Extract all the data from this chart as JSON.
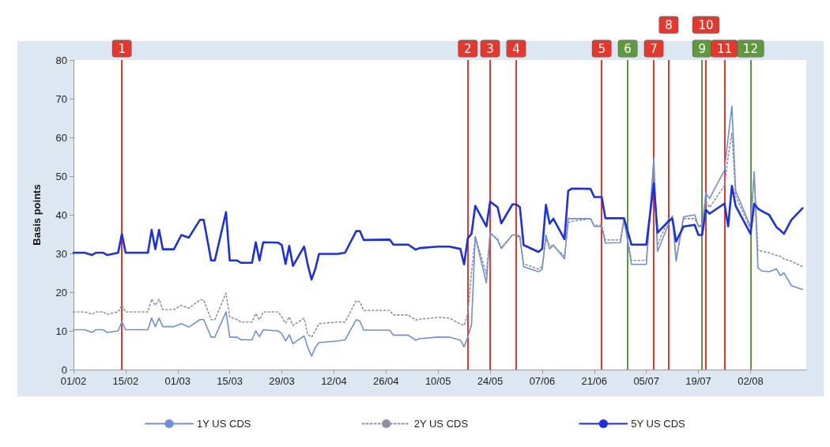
{
  "chart_data": {
    "type": "line",
    "ylabel": "Basis points",
    "x": [
      "--02-01",
      "--02-04",
      "--02-06",
      "--02-07",
      "--02-09",
      "--02-10",
      "--02-13",
      "--02-14",
      "--02-15",
      "--02-21",
      "--02-22",
      "--02-23",
      "--02-24",
      "--02-25",
      "--02-28",
      "--03-02",
      "--03-04",
      "--03-07",
      "--03-08",
      "--03-10",
      "--03-11",
      "--03-14",
      "--03-15",
      "--03-17",
      "--03-18",
      "--03-21",
      "--03-22",
      "--03-23",
      "--03-24",
      "--03-28",
      "--03-29",
      "--03-30",
      "--03-31",
      "--04-01",
      "--04-04",
      "--04-05",
      "--04-06",
      "--04-07",
      "--04-08",
      "--04-13",
      "--04-15",
      "--04-18",
      "--04-19",
      "--04-20",
      "--04-27",
      "--04-28",
      "--05-02",
      "--05-04",
      "--05-05",
      "--05-10",
      "--05-13",
      "--05-16",
      "--05-17",
      "--05-18",
      "--05-19",
      "--05-20",
      "--05-23",
      "--05-24",
      "--05-26",
      "--05-27",
      "--05-30",
      "--05-31",
      "--06-01",
      "--06-02",
      "--06-06",
      "--06-07",
      "--06-08",
      "--06-09",
      "--06-10",
      "--06-13",
      "--06-14",
      "--06-15",
      "--06-20",
      "--06-21",
      "--06-23",
      "--06-24",
      "--06-28",
      "--06-29",
      "--07-01",
      "--07-05",
      "--07-07",
      "--07-08",
      "--07-11",
      "--07-12",
      "--07-13",
      "--07-15",
      "--07-18",
      "--07-19",
      "--07-20",
      "--07-21",
      "--07-22",
      "--07-26",
      "--07-27",
      "--07-28",
      "--07-29",
      "--08-02",
      "--08-03",
      "--08-04",
      "--08-05",
      "--08-07",
      "--08-09",
      "--08-10",
      "--08-11",
      "--08-13",
      "--08-16"
    ],
    "series": [
      {
        "name": "1Y US CDS",
        "color": "#6f8fd8",
        "line_style": "solid",
        "values": [
          10.3,
          10.3,
          9.6,
          10.3,
          10.3,
          9.6,
          10.0,
          12.4,
          10.3,
          10.3,
          13.3,
          11.1,
          13.3,
          11.1,
          11.1,
          11.9,
          11.0,
          12.9,
          12.9,
          8.4,
          8.4,
          14.9,
          8.4,
          8.4,
          7.7,
          7.7,
          10.0,
          8.5,
          10.3,
          10.0,
          9.3,
          7.4,
          9.0,
          6.7,
          8.7,
          5.7,
          3.5,
          5.7,
          7.0,
          7.4,
          7.7,
          12.9,
          12.5,
          10.2,
          10.2,
          8.9,
          8.9,
          7.6,
          8.0,
          8.4,
          8.4,
          7.6,
          5.9,
          8.4,
          11.6,
          34.4,
          22.4,
          35.4,
          33.5,
          31.3,
          34.8,
          34.8,
          34.5,
          26.6,
          25.3,
          25.9,
          34.8,
          31.2,
          32.2,
          28.6,
          39.0,
          39.0,
          39.0,
          37.0,
          37.0,
          32.7,
          32.8,
          38.7,
          27.2,
          27.2,
          54.7,
          30.5,
          37.7,
          39.7,
          28.0,
          39.5,
          40.0,
          37.0,
          37.0,
          45.6,
          44.2,
          51.5,
          60.0,
          68.1,
          46.2,
          37.0,
          51.1,
          26.3,
          25.5,
          25.3,
          26.0,
          24.3,
          25.0,
          21.7,
          20.7
        ]
      },
      {
        "name": "2Y US CDS",
        "color": "#8c90a4",
        "line_style": "dotted",
        "values": [
          14.9,
          14.9,
          14.3,
          14.9,
          14.9,
          14.3,
          14.9,
          16.7,
          14.9,
          14.9,
          18.2,
          16.6,
          18.2,
          15.5,
          15.5,
          16.6,
          15.9,
          18.0,
          18.0,
          12.9,
          12.9,
          19.8,
          13.6,
          12.9,
          12.3,
          12.3,
          14.5,
          12.9,
          14.9,
          14.9,
          13.6,
          12.0,
          13.6,
          11.4,
          13.3,
          9.0,
          8.4,
          10.0,
          11.9,
          12.3,
          12.3,
          17.8,
          17.5,
          15.3,
          15.3,
          14.1,
          14.1,
          12.8,
          13.0,
          13.5,
          13.3,
          11.8,
          11.4,
          14.5,
          25.0,
          34.4,
          24.7,
          35.1,
          33.8,
          31.5,
          34.8,
          34.8,
          34.0,
          27.3,
          26.0,
          26.6,
          33.8,
          32.0,
          31.9,
          29.3,
          38.0,
          38.3,
          39.0,
          37.3,
          37.3,
          33.5,
          33.5,
          39.0,
          28.2,
          28.2,
          51.4,
          32.2,
          39.0,
          39.3,
          28.6,
          39.0,
          39.0,
          37.3,
          37.3,
          43.6,
          41.9,
          47.5,
          55.0,
          61.2,
          44.9,
          36.4,
          50.1,
          30.9,
          30.6,
          30.2,
          29.5,
          29.3,
          28.6,
          28.0,
          26.6
        ]
      },
      {
        "name": "5Y US CDS",
        "color": "#1a2fe6",
        "line_style": "solid",
        "values": [
          30.2,
          30.2,
          29.6,
          30.2,
          30.2,
          29.6,
          30.2,
          35.1,
          30.2,
          30.2,
          36.1,
          31.1,
          36.1,
          31.1,
          31.1,
          34.8,
          34.1,
          38.7,
          38.7,
          28.2,
          28.2,
          40.7,
          28.2,
          28.2,
          27.6,
          27.6,
          32.9,
          28.2,
          32.9,
          32.8,
          32.2,
          27.3,
          32.0,
          26.8,
          31.8,
          27.0,
          23.3,
          26.0,
          29.9,
          29.9,
          30.2,
          35.8,
          35.8,
          33.5,
          33.6,
          32.3,
          32.3,
          31.0,
          31.4,
          31.8,
          31.8,
          31.2,
          27.2,
          33.9,
          35.1,
          42.3,
          37.0,
          43.4,
          42.0,
          37.8,
          42.7,
          42.7,
          42.0,
          32.2,
          30.4,
          31.2,
          42.6,
          37.7,
          39.0,
          33.7,
          46.2,
          46.8,
          46.7,
          44.6,
          44.6,
          39.1,
          39.1,
          39.1,
          32.3,
          32.3,
          48.1,
          35.4,
          38.4,
          39.0,
          33.1,
          37.0,
          37.4,
          34.8,
          34.8,
          41.3,
          40.3,
          42.9,
          37.0,
          47.5,
          42.3,
          35.1,
          42.9,
          41.6,
          41.0,
          40.0,
          36.8,
          36.0,
          35.1,
          38.7,
          41.7
        ]
      }
    ],
    "xlim": [
      "--02-01",
      "--08-17"
    ],
    "xticks": [
      {
        "value": "--02-01",
        "label": "01/02"
      },
      {
        "value": "--02-15",
        "label": "15/02"
      },
      {
        "value": "--03-01",
        "label": "01/03"
      },
      {
        "value": "--03-15",
        "label": "15/03"
      },
      {
        "value": "--03-29",
        "label": "29/03"
      },
      {
        "value": "--04-12",
        "label": "12/04"
      },
      {
        "value": "--04-26",
        "label": "26/04"
      },
      {
        "value": "--05-10",
        "label": "10/05"
      },
      {
        "value": "--05-24",
        "label": "24/05"
      },
      {
        "value": "--06-07",
        "label": "07/06"
      },
      {
        "value": "--06-21",
        "label": "21/06"
      },
      {
        "value": "--07-05",
        "label": "05/07"
      },
      {
        "value": "--07-19",
        "label": "19/07"
      },
      {
        "value": "--08-02",
        "label": "02/08"
      }
    ],
    "ylim": [
      0,
      80
    ],
    "yticks": [
      0,
      10,
      20,
      30,
      40,
      50,
      60,
      70,
      80
    ],
    "grid": false,
    "legend": "bottom",
    "ref_lines": [
      {
        "axis": "x",
        "value": "--02-14",
        "label": "1",
        "color": "#e5372c"
      },
      {
        "axis": "x",
        "value": "--05-18",
        "label": "2",
        "color": "#e5372c"
      },
      {
        "axis": "x",
        "value": "--05-24",
        "label": "3",
        "color": "#e5372c"
      },
      {
        "axis": "x",
        "value": "--05-31",
        "label": "4",
        "color": "#e5372c"
      },
      {
        "axis": "x",
        "value": "--06-23",
        "label": "5",
        "color": "#e5372c"
      },
      {
        "axis": "x",
        "value": "--06-30",
        "label": "6",
        "color": "#5e9a3c"
      },
      {
        "axis": "x",
        "value": "--07-07",
        "label": "7",
        "color": "#e5372c"
      },
      {
        "axis": "x",
        "value": "--07-11",
        "label": "8",
        "color": "#e5372c"
      },
      {
        "axis": "x",
        "value": "--07-20",
        "label": "9",
        "color": "#5e9a3c"
      },
      {
        "axis": "x",
        "value": "--07-21",
        "label": "10",
        "color": "#e5372c"
      },
      {
        "axis": "x",
        "value": "--07-26",
        "label": "11",
        "color": "#e5372c"
      },
      {
        "axis": "x",
        "value": "--08-02",
        "label": "12",
        "color": "#5e9a3c"
      }
    ]
  }
}
